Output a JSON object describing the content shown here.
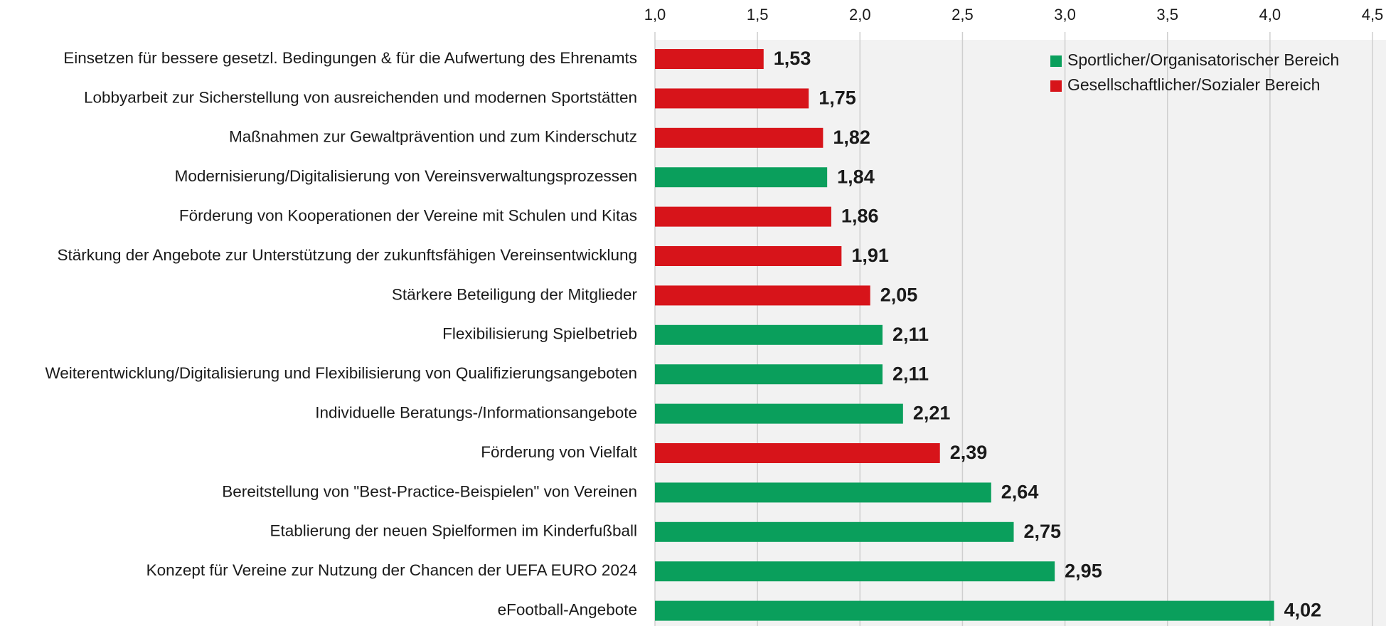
{
  "chart_data": {
    "type": "bar",
    "orientation": "horizontal",
    "categories": [
      "Einsetzen für bessere gesetzl. Bedingungen & für die Aufwertung des Ehrenamts",
      "Lobbyarbeit zur Sicherstellung von ausreichenden und modernen Sportstätten",
      "Maßnahmen zur Gewaltprävention und zum Kinderschutz",
      "Modernisierung/Digitalisierung von Vereinsverwaltungsprozessen",
      "Förderung von Kooperationen der Vereine mit Schulen und Kitas",
      "Stärkung der Angebote zur Unterstützung der zukunftsfähigen Vereinsentwicklung",
      "Stärkere Beteiligung der Mitglieder",
      "Flexibilisierung Spielbetrieb",
      "Weiterentwicklung/Digitalisierung und Flexibilisierung von Qualifizierungsangeboten",
      "Individuelle Beratungs-/Informationsangebote",
      "Förderung von Vielfalt",
      "Bereitstellung von \"Best-Practice-Beispielen\" von Vereinen",
      "Etablierung der neuen Spielformen im Kinderfußball",
      "Konzept für Vereine zur Nutzung der Chancen der UEFA EURO 2024",
      "eFootball-Angebote"
    ],
    "series": [
      {
        "name": "Sportlicher/Organisatorischer Bereich",
        "color": "#0a9f5c",
        "values": [
          null,
          null,
          null,
          1.84,
          null,
          null,
          null,
          2.11,
          2.11,
          2.21,
          null,
          2.64,
          2.75,
          2.95,
          4.02
        ],
        "value_labels": [
          null,
          null,
          null,
          "1,84",
          null,
          null,
          null,
          "2,11",
          "2,11",
          "2,21",
          null,
          "2,64",
          "2,75",
          "2,95",
          "4,02"
        ]
      },
      {
        "name": "Gesellschaftlicher/Sozialer Bereich",
        "color": "#d7141a",
        "values": [
          1.53,
          1.75,
          1.82,
          null,
          1.86,
          1.91,
          2.05,
          null,
          null,
          null,
          2.39,
          null,
          null,
          null,
          null
        ],
        "value_labels": [
          "1,53",
          "1,75",
          "1,82",
          null,
          "1,86",
          "1,91",
          "2,05",
          null,
          null,
          null,
          "2,39",
          null,
          null,
          null,
          null
        ]
      }
    ],
    "xlim": [
      1,
      4.5
    ],
    "xticks": [
      {
        "value": 1,
        "label": "1,0"
      },
      {
        "value": 1.5,
        "label": "1,5"
      },
      {
        "value": 2,
        "label": "2,0"
      },
      {
        "value": 2.5,
        "label": "2,5"
      },
      {
        "value": 3,
        "label": "3,0"
      },
      {
        "value": 3.5,
        "label": "3,5"
      },
      {
        "value": 4,
        "label": "4,0"
      },
      {
        "value": 4.5,
        "label": "4,5"
      }
    ],
    "grid": true,
    "legend": "upper right"
  }
}
